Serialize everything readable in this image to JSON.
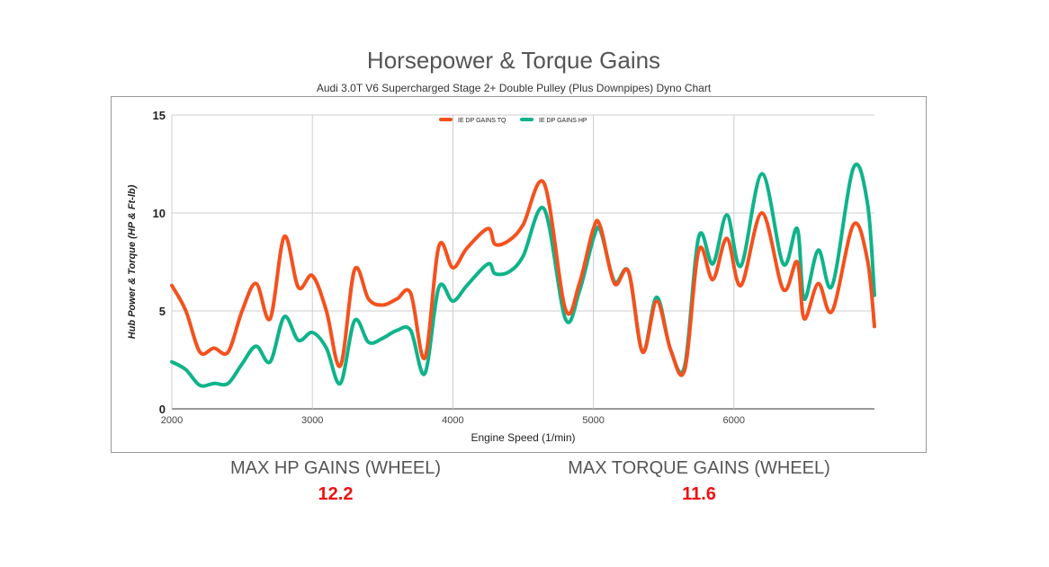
{
  "title": "Horsepower & Torque Gains",
  "subtitle": "Audi 3.0T V6 Supercharged Stage 2+ Double Pulley (Plus Downpipes) Dyno Chart",
  "stats": [
    {
      "label": "MAX HP GAINS (WHEEL)",
      "value": "12.2"
    },
    {
      "label": "MAX TORQUE GAINS (WHEEL)",
      "value": "11.6"
    }
  ],
  "chart_data": {
    "type": "line",
    "title": "Horsepower & Torque Gains",
    "xlabel": "Engine Speed (1/min)",
    "ylabel": "Hub Power & Torque (HP & Ft-lb)",
    "xlim": [
      2000,
      7000
    ],
    "ylim": [
      0,
      15
    ],
    "xticks": [
      2000,
      3000,
      4000,
      5000,
      6000
    ],
    "yticks": [
      0,
      5,
      10,
      15
    ],
    "grid": true,
    "legend": "top-center",
    "series": [
      {
        "name": "IE DP GAINS TQ",
        "color": "#f4511e",
        "points": [
          [
            2000,
            6.3
          ],
          [
            2100,
            5.0
          ],
          [
            2200,
            2.9
          ],
          [
            2300,
            3.1
          ],
          [
            2400,
            2.9
          ],
          [
            2500,
            5.0
          ],
          [
            2600,
            6.4
          ],
          [
            2700,
            4.6
          ],
          [
            2800,
            8.8
          ],
          [
            2900,
            6.2
          ],
          [
            3000,
            6.8
          ],
          [
            3100,
            5.0
          ],
          [
            3200,
            2.2
          ],
          [
            3300,
            7.1
          ],
          [
            3400,
            5.6
          ],
          [
            3500,
            5.3
          ],
          [
            3600,
            5.6
          ],
          [
            3700,
            5.9
          ],
          [
            3800,
            2.6
          ],
          [
            3900,
            8.3
          ],
          [
            4000,
            7.2
          ],
          [
            4100,
            8.2
          ],
          [
            4250,
            9.2
          ],
          [
            4300,
            8.4
          ],
          [
            4400,
            8.6
          ],
          [
            4500,
            9.4
          ],
          [
            4650,
            11.5
          ],
          [
            4800,
            5.1
          ],
          [
            4900,
            6.4
          ],
          [
            5000,
            9.2
          ],
          [
            5050,
            9.3
          ],
          [
            5150,
            6.4
          ],
          [
            5250,
            7.0
          ],
          [
            5350,
            2.9
          ],
          [
            5450,
            5.5
          ],
          [
            5550,
            3.0
          ],
          [
            5650,
            2.0
          ],
          [
            5750,
            8.1
          ],
          [
            5850,
            6.6
          ],
          [
            5950,
            8.7
          ],
          [
            6050,
            6.3
          ],
          [
            6200,
            10.0
          ],
          [
            6350,
            6.1
          ],
          [
            6450,
            7.5
          ],
          [
            6500,
            4.6
          ],
          [
            6600,
            6.4
          ],
          [
            6700,
            5.0
          ],
          [
            6850,
            9.4
          ],
          [
            6950,
            7.6
          ],
          [
            7000,
            4.2
          ]
        ]
      },
      {
        "name": "IE DP GAINS HP",
        "color": "#0fb38a",
        "points": [
          [
            2000,
            2.4
          ],
          [
            2100,
            2.0
          ],
          [
            2200,
            1.2
          ],
          [
            2300,
            1.3
          ],
          [
            2400,
            1.3
          ],
          [
            2500,
            2.3
          ],
          [
            2600,
            3.2
          ],
          [
            2700,
            2.4
          ],
          [
            2800,
            4.7
          ],
          [
            2900,
            3.5
          ],
          [
            3000,
            3.9
          ],
          [
            3100,
            3.1
          ],
          [
            3200,
            1.3
          ],
          [
            3300,
            4.5
          ],
          [
            3400,
            3.4
          ],
          [
            3500,
            3.6
          ],
          [
            3600,
            4.0
          ],
          [
            3700,
            4.0
          ],
          [
            3800,
            1.8
          ],
          [
            3900,
            6.2
          ],
          [
            4000,
            5.5
          ],
          [
            4100,
            6.3
          ],
          [
            4250,
            7.4
          ],
          [
            4300,
            6.9
          ],
          [
            4400,
            7.0
          ],
          [
            4500,
            7.8
          ],
          [
            4650,
            10.2
          ],
          [
            4800,
            4.6
          ],
          [
            4900,
            6.0
          ],
          [
            5000,
            8.7
          ],
          [
            5050,
            9.1
          ],
          [
            5150,
            6.5
          ],
          [
            5250,
            7.0
          ],
          [
            5350,
            2.9
          ],
          [
            5450,
            5.7
          ],
          [
            5550,
            3.0
          ],
          [
            5650,
            2.2
          ],
          [
            5750,
            8.8
          ],
          [
            5850,
            7.4
          ],
          [
            5950,
            9.9
          ],
          [
            6050,
            7.3
          ],
          [
            6200,
            12.0
          ],
          [
            6350,
            7.4
          ],
          [
            6450,
            9.2
          ],
          [
            6500,
            5.6
          ],
          [
            6600,
            8.1
          ],
          [
            6700,
            6.3
          ],
          [
            6850,
            12.3
          ],
          [
            6950,
            10.5
          ],
          [
            7000,
            5.8
          ]
        ]
      }
    ]
  }
}
